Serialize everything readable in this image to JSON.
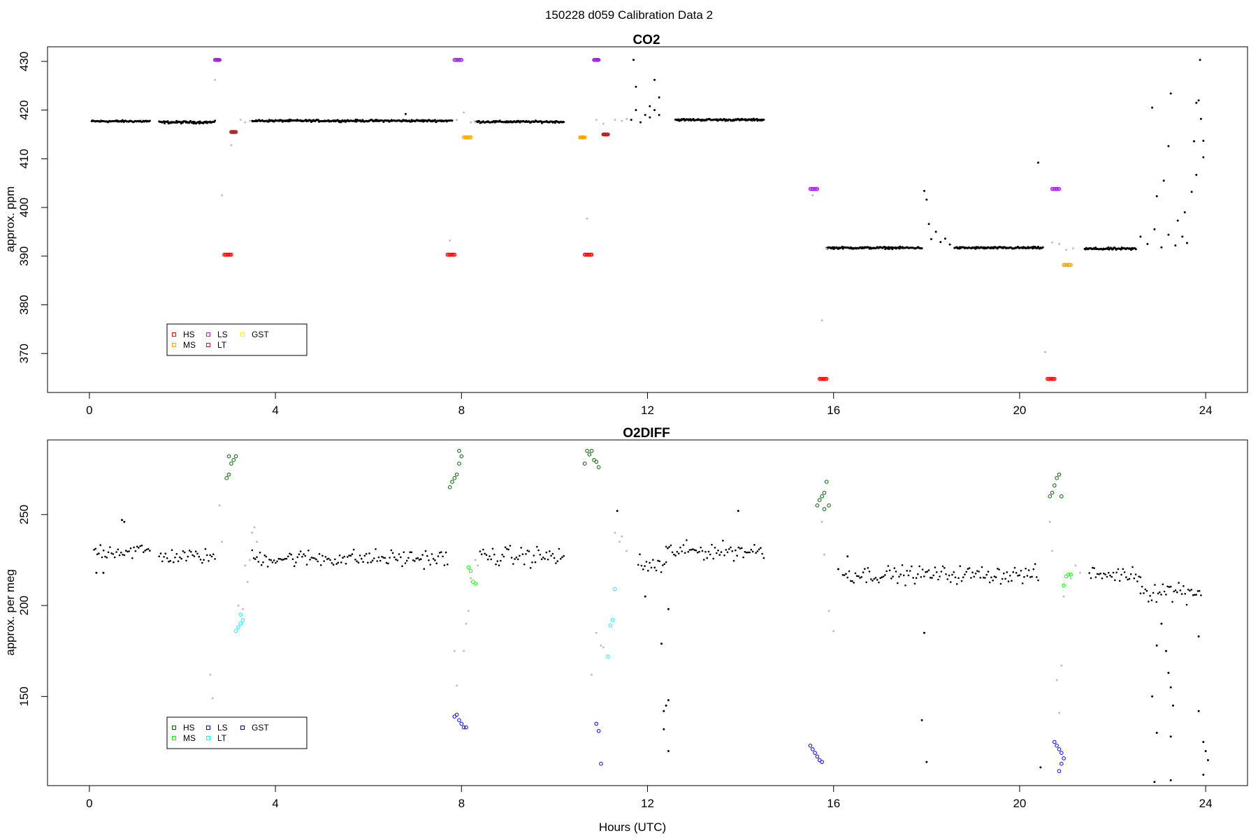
{
  "suptitle": "150228   d059   Calibration Data 2",
  "chart_data": [
    {
      "type": "scatter",
      "title": "CO2",
      "ylabel": "approx. ppm",
      "xlabel": "",
      "xlim": [
        -0.9,
        24.9
      ],
      "ylim": [
        362,
        433
      ],
      "xticks": [
        0,
        4,
        8,
        12,
        16,
        20,
        24
      ],
      "yticks": [
        370,
        380,
        390,
        400,
        410,
        420,
        430
      ],
      "legend": {
        "placement": "bottom-left",
        "entries": [
          {
            "label": "HS",
            "color": "#ff0000"
          },
          {
            "label": "MS",
            "color": "#ffa500"
          },
          {
            "label": "LS",
            "color": "#a020f0"
          },
          {
            "label": "LT",
            "color": "#b22222"
          },
          {
            "label": "GST",
            "color": "#ffff00"
          }
        ]
      },
      "colors": {
        "sample": "#000000",
        "flushing": "#bebebe"
      },
      "baseline_segments": [
        {
          "x0": 0.05,
          "x1": 1.3,
          "y": 417.7,
          "noise": 0.3
        },
        {
          "x0": 1.5,
          "x1": 2.7,
          "y": 417.5,
          "noise": 0.35
        },
        {
          "x0": 3.5,
          "x1": 7.8,
          "y": 417.8,
          "noise": 0.3
        },
        {
          "x0": 8.3,
          "x1": 10.2,
          "y": 417.6,
          "noise": 0.3
        },
        {
          "x0": 12.6,
          "x1": 14.5,
          "y": 418.0,
          "noise": 0.3
        },
        {
          "x0": 15.85,
          "x1": 17.9,
          "y": 391.7,
          "noise": 0.3
        },
        {
          "x0": 18.6,
          "x1": 20.5,
          "y": 391.7,
          "noise": 0.3
        },
        {
          "x0": 21.4,
          "x1": 22.5,
          "y": 391.5,
          "noise": 0.35
        }
      ],
      "sample_points": [
        [
          11.65,
          418
        ],
        [
          11.75,
          420
        ],
        [
          11.85,
          417.5
        ],
        [
          11.95,
          419
        ],
        [
          12.05,
          418.5
        ],
        [
          12.15,
          420
        ],
        [
          12.25,
          419
        ],
        [
          11.7,
          430.3
        ],
        [
          11.75,
          424.8
        ],
        [
          12.15,
          426.2
        ],
        [
          12.25,
          422.6
        ],
        [
          12.05,
          420.8
        ],
        [
          6.8,
          419.2
        ],
        [
          17.95,
          403.4
        ],
        [
          18.0,
          401.6
        ],
        [
          18.05,
          396.6
        ],
        [
          18.1,
          393.5
        ],
        [
          18.2,
          395.0
        ],
        [
          18.3,
          392.9
        ],
        [
          18.4,
          393.6
        ],
        [
          18.5,
          392.4
        ],
        [
          20.4,
          409.2
        ],
        [
          22.6,
          394.0
        ],
        [
          22.75,
          392.5
        ],
        [
          22.9,
          395.5
        ],
        [
          23.05,
          391.8
        ],
        [
          23.2,
          394.4
        ],
        [
          23.35,
          392.2
        ],
        [
          23.5,
          394.0
        ],
        [
          23.6,
          392.7
        ],
        [
          22.85,
          420.5
        ],
        [
          22.95,
          402.3
        ],
        [
          23.1,
          405.5
        ],
        [
          23.2,
          412.6
        ],
        [
          23.25,
          423.4
        ],
        [
          23.4,
          397.3
        ],
        [
          23.55,
          399.0
        ],
        [
          23.7,
          403.2
        ],
        [
          23.75,
          413.6
        ],
        [
          23.8,
          421.5
        ],
        [
          23.85,
          422.0
        ],
        [
          23.9,
          418.2
        ],
        [
          23.95,
          413.7
        ],
        [
          23.95,
          410.3
        ],
        [
          23.88,
          430.3
        ],
        [
          23.8,
          406.7
        ]
      ],
      "flushing_points": [
        [
          2.7,
          426.2
        ],
        [
          2.85,
          402.5
        ],
        [
          3.05,
          412.8
        ],
        [
          3.25,
          418.0
        ],
        [
          3.35,
          417.5
        ],
        [
          3.45,
          417.8
        ],
        [
          7.75,
          393.2
        ],
        [
          7.9,
          418.0
        ],
        [
          8.05,
          419.5
        ],
        [
          8.2,
          417.5
        ],
        [
          8.3,
          417.5
        ],
        [
          10.7,
          397.7
        ],
        [
          10.9,
          418.0
        ],
        [
          11.05,
          417.2
        ],
        [
          11.3,
          418.0
        ],
        [
          11.45,
          417.8
        ],
        [
          11.55,
          418.2
        ],
        [
          15.55,
          402.5
        ],
        [
          15.75,
          376.8
        ],
        [
          15.85,
          391.5
        ],
        [
          20.55,
          370.3
        ],
        [
          20.7,
          392.8
        ],
        [
          20.85,
          392.5
        ],
        [
          21.0,
          391.3
        ],
        [
          21.15,
          391.6
        ]
      ],
      "calibration": [
        {
          "label": "HS",
          "x": [
            2.9,
            3.05
          ],
          "y": 390.3
        },
        {
          "label": "HS",
          "x": [
            7.7,
            7.85
          ],
          "y": 390.3
        },
        {
          "label": "HS",
          "x": [
            10.65,
            10.8
          ],
          "y": 390.3
        },
        {
          "label": "HS",
          "x": [
            15.7,
            15.85
          ],
          "y": 364.8
        },
        {
          "label": "HS",
          "x": [
            20.6,
            20.75
          ],
          "y": 364.8
        },
        {
          "label": "MS",
          "x": [
            8.05,
            8.2
          ],
          "y": 414.4
        },
        {
          "label": "MS",
          "x": [
            10.55,
            10.65
          ],
          "y": 414.4
        },
        {
          "label": "MS",
          "x": [
            20.95,
            21.1
          ],
          "y": 388.2
        },
        {
          "label": "LS",
          "x": [
            2.7,
            2.8
          ],
          "y": 430.3
        },
        {
          "label": "LS",
          "x": [
            7.85,
            8.0
          ],
          "y": 430.3
        },
        {
          "label": "LS",
          "x": [
            10.85,
            10.95
          ],
          "y": 430.3
        },
        {
          "label": "LS",
          "x": [
            15.5,
            15.65
          ],
          "y": 403.8
        },
        {
          "label": "LS",
          "x": [
            20.7,
            20.85
          ],
          "y": 403.8
        },
        {
          "label": "LT",
          "x": [
            3.05,
            3.15
          ],
          "y": 415.5
        },
        {
          "label": "LT",
          "x": [
            11.05,
            11.15
          ],
          "y": 415.0
        }
      ]
    },
    {
      "type": "scatter",
      "title": "O2DIFF",
      "ylabel": "approx. per meg",
      "xlabel": "Hours (UTC)",
      "xlim": [
        -0.9,
        24.9
      ],
      "ylim": [
        101,
        291
      ],
      "xticks": [
        0,
        4,
        8,
        12,
        16,
        20,
        24
      ],
      "yticks": [
        150,
        200,
        250
      ],
      "legend": {
        "placement": "bottom-left",
        "entries": [
          {
            "label": "HS",
            "color": "#006400"
          },
          {
            "label": "MS",
            "color": "#00ff00"
          },
          {
            "label": "LS",
            "color": "#0000ff"
          },
          {
            "label": "LT",
            "color": "#00ffff"
          },
          {
            "label": "GST",
            "color": "#00008b"
          }
        ]
      },
      "colors": {
        "sample": "#000000",
        "flushing": "#bebebe"
      },
      "baseline_segments": [
        {
          "x0": 0.1,
          "x1": 1.3,
          "y": 230,
          "noise": 7
        },
        {
          "x0": 1.5,
          "x1": 2.7,
          "y": 227,
          "noise": 6
        },
        {
          "x0": 3.5,
          "x1": 7.7,
          "y": 226,
          "noise": 7
        },
        {
          "x0": 8.4,
          "x1": 10.2,
          "y": 227,
          "noise": 8
        },
        {
          "x0": 11.8,
          "x1": 12.4,
          "y": 222,
          "noise": 9
        },
        {
          "x0": 12.4,
          "x1": 14.5,
          "y": 230,
          "noise": 7
        },
        {
          "x0": 16.2,
          "x1": 20.4,
          "y": 217,
          "noise": 7
        },
        {
          "x0": 21.5,
          "x1": 22.6,
          "y": 217,
          "noise": 6
        },
        {
          "x0": 22.6,
          "x1": 23.9,
          "y": 208,
          "noise": 9
        }
      ],
      "sample_points": [
        [
          0.15,
          218
        ],
        [
          0.3,
          218
        ],
        [
          0.7,
          247
        ],
        [
          0.75,
          246
        ],
        [
          12.3,
          179
        ],
        [
          12.35,
          142
        ],
        [
          12.4,
          145
        ],
        [
          12.45,
          148
        ],
        [
          12.35,
          132
        ],
        [
          12.45,
          120
        ],
        [
          12.45,
          198
        ],
        [
          11.95,
          205
        ],
        [
          17.95,
          185
        ],
        [
          17.9,
          137
        ],
        [
          18.0,
          114
        ],
        [
          20.45,
          111
        ],
        [
          22.85,
          150
        ],
        [
          22.95,
          178
        ],
        [
          23.05,
          190
        ],
        [
          23.15,
          175
        ],
        [
          23.2,
          163
        ],
        [
          23.25,
          155
        ],
        [
          23.3,
          145
        ],
        [
          23.25,
          128
        ],
        [
          22.95,
          130
        ],
        [
          23.25,
          104
        ],
        [
          22.9,
          103
        ],
        [
          23.85,
          142
        ],
        [
          23.95,
          125
        ],
        [
          24.0,
          120
        ],
        [
          24.05,
          115
        ],
        [
          23.95,
          107
        ],
        [
          23.85,
          183
        ],
        [
          11.35,
          252
        ],
        [
          13.95,
          252
        ],
        [
          16.1,
          220
        ],
        [
          16.3,
          227
        ]
      ],
      "flushing_points": [
        [
          2.8,
          255
        ],
        [
          2.85,
          235
        ],
        [
          2.6,
          162
        ],
        [
          2.65,
          149
        ],
        [
          3.2,
          200
        ],
        [
          3.3,
          198
        ],
        [
          3.4,
          213
        ],
        [
          3.5,
          240
        ],
        [
          3.55,
          243
        ],
        [
          3.6,
          235
        ],
        [
          3.45,
          225
        ],
        [
          3.35,
          222
        ],
        [
          7.85,
          175
        ],
        [
          7.9,
          156
        ],
        [
          8.05,
          175
        ],
        [
          8.1,
          190
        ],
        [
          8.15,
          197
        ],
        [
          8.2,
          215
        ],
        [
          8.3,
          225
        ],
        [
          8.35,
          222
        ],
        [
          10.8,
          162
        ],
        [
          10.9,
          185
        ],
        [
          11.0,
          178
        ],
        [
          11.05,
          177
        ],
        [
          11.3,
          240
        ],
        [
          11.4,
          235
        ],
        [
          11.45,
          238
        ],
        [
          11.55,
          230
        ],
        [
          15.75,
          246
        ],
        [
          15.8,
          228
        ],
        [
          15.9,
          197
        ],
        [
          16.0,
          186
        ],
        [
          20.65,
          246
        ],
        [
          20.7,
          230
        ],
        [
          20.8,
          159
        ],
        [
          20.85,
          141
        ],
        [
          20.9,
          167
        ],
        [
          20.95,
          205
        ],
        [
          21.1,
          215
        ],
        [
          21.2,
          222
        ],
        [
          21.3,
          218
        ]
      ],
      "calibration": [
        {
          "label": "HS",
          "points": [
            [
              2.95,
              270
            ],
            [
              3.0,
              272
            ],
            [
              3.05,
              278
            ],
            [
              3.1,
              280
            ],
            [
              3.15,
              282
            ],
            [
              3.0,
              282
            ]
          ]
        },
        {
          "label": "HS",
          "points": [
            [
              7.75,
              265
            ],
            [
              7.8,
              268
            ],
            [
              7.85,
              270
            ],
            [
              7.9,
              272
            ],
            [
              7.95,
              278
            ],
            [
              8.0,
              282
            ],
            [
              7.95,
              285
            ]
          ]
        },
        {
          "label": "HS",
          "points": [
            [
              10.7,
              285
            ],
            [
              10.75,
              283
            ],
            [
              10.8,
              285
            ],
            [
              10.85,
              280
            ],
            [
              10.9,
              279
            ],
            [
              10.95,
              276
            ],
            [
              10.65,
              278
            ]
          ]
        },
        {
          "label": "HS",
          "points": [
            [
              15.65,
              255
            ],
            [
              15.7,
              258
            ],
            [
              15.75,
              260
            ],
            [
              15.8,
              262
            ],
            [
              15.85,
              268
            ],
            [
              15.9,
              255
            ],
            [
              15.8,
              253
            ]
          ]
        },
        {
          "label": "HS",
          "points": [
            [
              20.65,
              260
            ],
            [
              20.7,
              262
            ],
            [
              20.75,
              266
            ],
            [
              20.8,
              270
            ],
            [
              20.85,
              272
            ],
            [
              20.9,
              260
            ]
          ]
        },
        {
          "label": "MS",
          "points": [
            [
              8.15,
              221
            ],
            [
              8.2,
              219
            ],
            [
              8.25,
              213
            ],
            [
              8.3,
              212
            ]
          ]
        },
        {
          "label": "MS",
          "points": [
            [
              20.95,
              211
            ],
            [
              21.0,
              216
            ],
            [
              21.05,
              217
            ],
            [
              21.1,
              217
            ]
          ]
        },
        {
          "label": "LS",
          "points": [
            [
              7.85,
              139
            ],
            [
              7.9,
              140
            ],
            [
              7.95,
              137
            ],
            [
              8.0,
              135
            ],
            [
              8.05,
              133
            ],
            [
              8.1,
              133
            ]
          ]
        },
        {
          "label": "LS",
          "points": [
            [
              10.9,
              135
            ],
            [
              10.95,
              131
            ],
            [
              11.0,
              113
            ]
          ]
        },
        {
          "label": "LS",
          "points": [
            [
              15.5,
              123
            ],
            [
              15.55,
              121
            ],
            [
              15.6,
              119
            ],
            [
              15.65,
              117
            ],
            [
              15.7,
              115
            ],
            [
              15.75,
              114
            ]
          ]
        },
        {
          "label": "LS",
          "points": [
            [
              20.75,
              125
            ],
            [
              20.8,
              123
            ],
            [
              20.85,
              121
            ],
            [
              20.9,
              119
            ],
            [
              20.95,
              116
            ],
            [
              20.85,
              109
            ],
            [
              20.9,
              113
            ]
          ]
        },
        {
          "label": "LT",
          "points": [
            [
              3.15,
              186
            ],
            [
              3.2,
              188
            ],
            [
              3.25,
              190
            ],
            [
              3.3,
              192
            ],
            [
              3.25,
              195
            ]
          ]
        },
        {
          "label": "LT",
          "points": [
            [
              11.15,
              172
            ],
            [
              11.2,
              189
            ],
            [
              11.25,
              192
            ],
            [
              11.3,
              209
            ]
          ]
        }
      ]
    }
  ]
}
